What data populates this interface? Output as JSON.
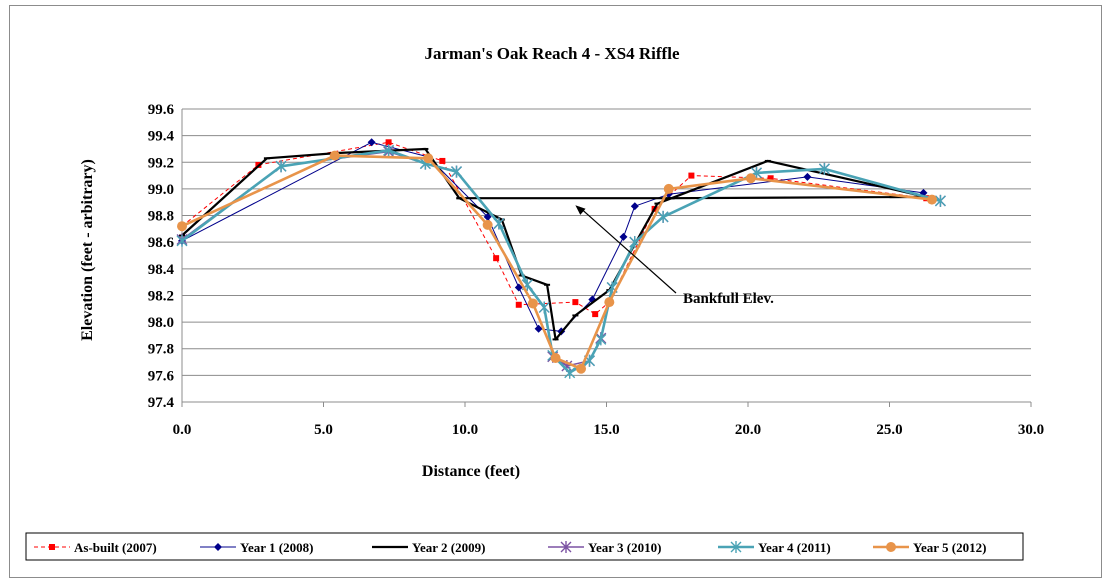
{
  "chart_data": {
    "type": "line",
    "title": "Jarman's Oak Reach 4 - XS4 Riffle",
    "xlabel": "Distance (feet)",
    "ylabel": "Elevation (feet - arbitrary)",
    "xlim": [
      0,
      30
    ],
    "ylim": [
      97.4,
      99.6
    ],
    "x_ticks": [
      "0.0",
      "5.0",
      "10.0",
      "15.0",
      "20.0",
      "25.0",
      "30.0"
    ],
    "y_ticks": [
      "97.4",
      "97.6",
      "97.8",
      "98.0",
      "98.2",
      "98.4",
      "98.6",
      "98.8",
      "99.0",
      "99.2",
      "99.4",
      "99.6"
    ],
    "grid": "horizontal",
    "legend_position": "bottom",
    "annotation": {
      "text": "Bankfull Elev.",
      "points_to": [
        13.9,
        98.9
      ]
    },
    "series": [
      {
        "name": "As-built (2007)",
        "color": "#ff0000",
        "marker": "square",
        "dash": "dashed",
        "points": [
          [
            0.0,
            98.72
          ],
          [
            2.7,
            99.18
          ],
          [
            7.3,
            99.35
          ],
          [
            9.2,
            99.21
          ],
          [
            11.1,
            98.48
          ],
          [
            11.9,
            98.13
          ],
          [
            13.9,
            98.15
          ],
          [
            14.6,
            98.06
          ],
          [
            15.1,
            98.15
          ],
          [
            16.7,
            98.85
          ],
          [
            18.0,
            99.1
          ],
          [
            20.8,
            99.08
          ],
          [
            26.3,
            98.93
          ]
        ]
      },
      {
        "name": "Year 1 (2008)",
        "color": "#00008b",
        "marker": "diamond",
        "dash": "solid",
        "points": [
          [
            0.0,
            98.61
          ],
          [
            6.7,
            99.35
          ],
          [
            8.7,
            99.24
          ],
          [
            10.8,
            98.79
          ],
          [
            11.9,
            98.26
          ],
          [
            12.6,
            97.95
          ],
          [
            13.4,
            97.93
          ],
          [
            14.5,
            98.17
          ],
          [
            15.6,
            98.64
          ],
          [
            16.0,
            98.87
          ],
          [
            17.2,
            98.96
          ],
          [
            22.1,
            99.09
          ],
          [
            26.2,
            98.97
          ]
        ]
      },
      {
        "name": "Year 2 (2009)",
        "color": "#000000",
        "marker": "dash",
        "dash": "solid",
        "points": [
          [
            0.0,
            98.65
          ],
          [
            3.0,
            99.23
          ],
          [
            5.5,
            99.27
          ],
          [
            8.6,
            99.3
          ],
          [
            9.8,
            98.93
          ],
          [
            17.3,
            98.93
          ],
          [
            20.7,
            99.21
          ],
          [
            26.3,
            98.94
          ],
          [
            17.3,
            98.93
          ],
          [
            16.8,
            98.89
          ],
          [
            15.1,
            98.24
          ],
          [
            13.9,
            98.05
          ],
          [
            13.2,
            97.87
          ],
          [
            12.9,
            98.28
          ],
          [
            12.0,
            98.35
          ],
          [
            11.3,
            98.77
          ],
          [
            9.8,
            98.93
          ]
        ]
      },
      {
        "name": "Year 3 (2010)",
        "color": "#7b52a3",
        "marker": "star",
        "dash": "solid",
        "points": [
          [
            0.0,
            98.62
          ],
          [
            3.5,
            99.17
          ],
          [
            7.3,
            99.28
          ],
          [
            8.6,
            99.19
          ],
          [
            9.7,
            99.13
          ],
          [
            11.2,
            98.74
          ],
          [
            12.2,
            98.28
          ],
          [
            12.8,
            98.11
          ],
          [
            13.1,
            97.74
          ],
          [
            13.6,
            97.67
          ],
          [
            14.4,
            97.71
          ],
          [
            14.8,
            97.88
          ],
          [
            15.2,
            98.26
          ],
          [
            16.0,
            98.6
          ],
          [
            17.0,
            98.79
          ],
          [
            20.3,
            99.12
          ],
          [
            22.7,
            99.15
          ],
          [
            26.8,
            98.91
          ]
        ]
      },
      {
        "name": "Year 4 (2011)",
        "color": "#4aa3b5",
        "marker": "star",
        "dash": "solid",
        "points": [
          [
            0.0,
            98.61
          ],
          [
            3.5,
            99.17
          ],
          [
            7.3,
            99.29
          ],
          [
            8.6,
            99.19
          ],
          [
            9.7,
            99.13
          ],
          [
            11.2,
            98.74
          ],
          [
            12.2,
            98.28
          ],
          [
            12.8,
            98.11
          ],
          [
            13.1,
            97.75
          ],
          [
            13.7,
            97.62
          ],
          [
            14.4,
            97.71
          ],
          [
            14.8,
            97.87
          ],
          [
            15.2,
            98.26
          ],
          [
            16.0,
            98.6
          ],
          [
            17.0,
            98.79
          ],
          [
            20.3,
            99.12
          ],
          [
            22.7,
            99.15
          ],
          [
            26.8,
            98.91
          ]
        ]
      },
      {
        "name": "Year 5 (2012)",
        "color": "#e8944a",
        "marker": "circle",
        "dash": "solid",
        "points": [
          [
            0.0,
            98.72
          ],
          [
            5.4,
            99.25
          ],
          [
            8.7,
            99.23
          ],
          [
            10.8,
            98.73
          ],
          [
            12.4,
            98.14
          ],
          [
            13.2,
            97.73
          ],
          [
            14.1,
            97.65
          ],
          [
            15.1,
            98.15
          ],
          [
            17.2,
            99.0
          ],
          [
            20.1,
            99.08
          ],
          [
            26.5,
            98.92
          ]
        ]
      }
    ]
  }
}
